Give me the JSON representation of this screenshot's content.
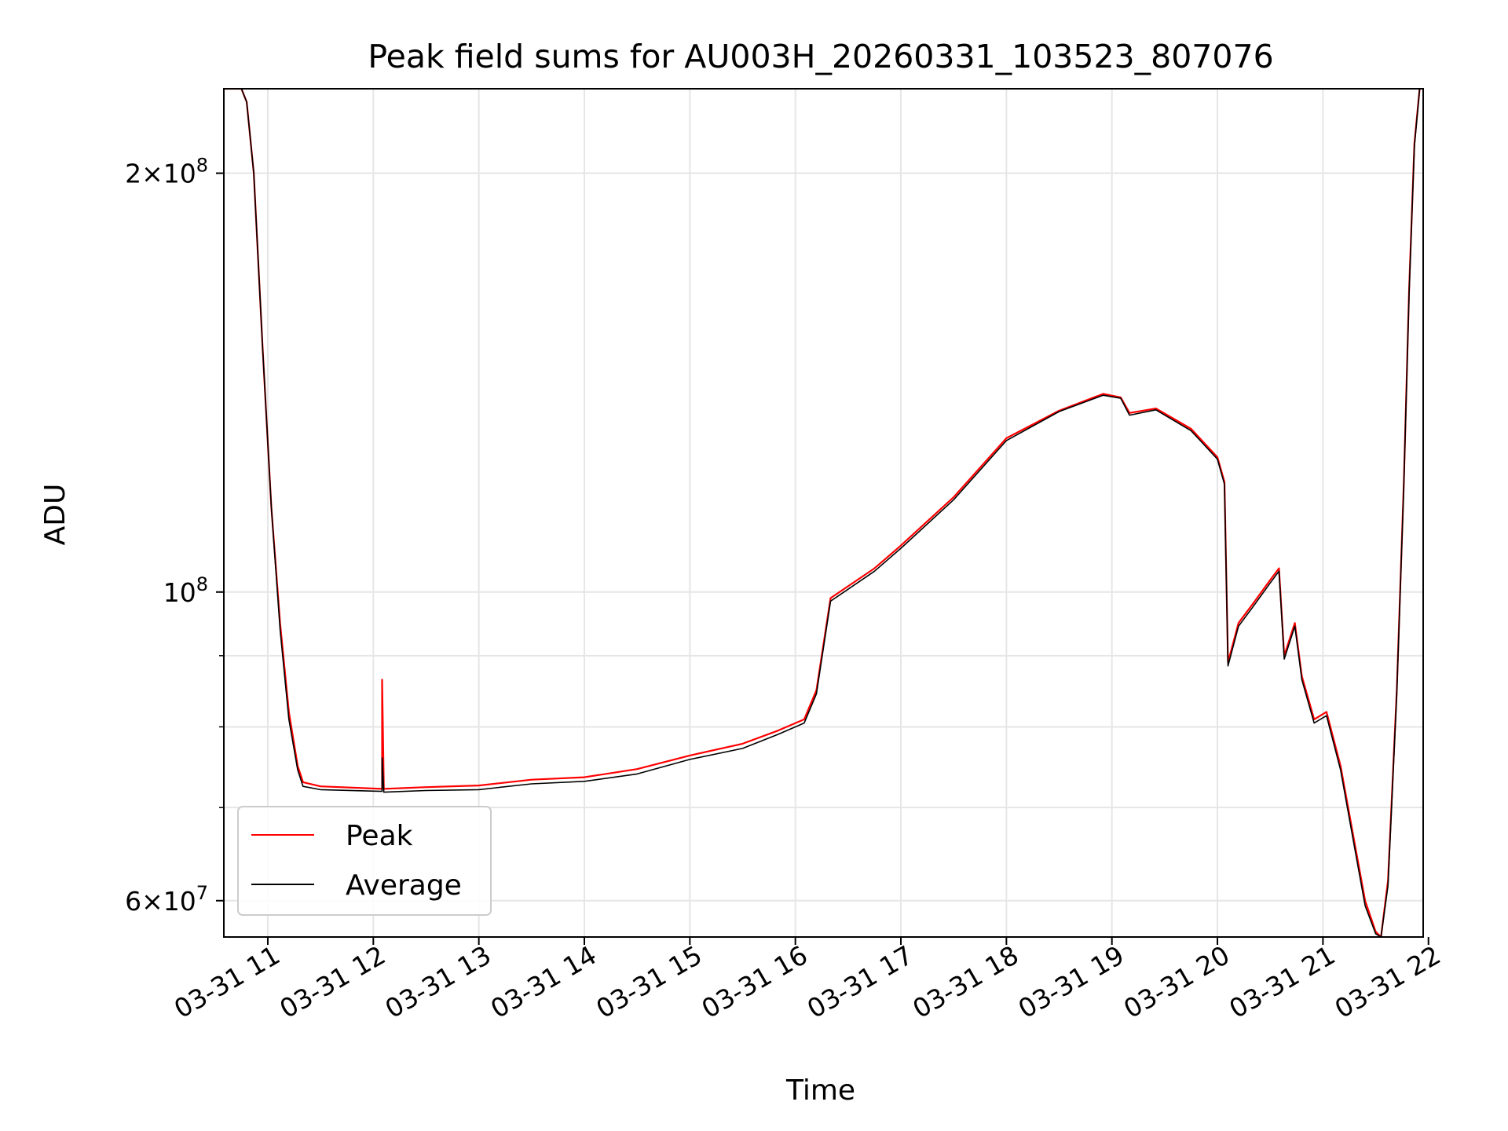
{
  "chart_data": {
    "type": "line",
    "title": "Peak field sums for AU003H_20260331_103523_807076",
    "xlabel": "Time",
    "ylabel": "ADU",
    "x_range": [
      "2026-03-31 10:35",
      "2026-03-31 21:57"
    ],
    "y_range": [
      56500000,
      230000000
    ],
    "y_scale": "log",
    "grid": true,
    "legend_position": "lower-left",
    "x_ticks": [
      "2026-03-31 11:00",
      "2026-03-31 12:00",
      "2026-03-31 13:00",
      "2026-03-31 14:00",
      "2026-03-31 15:00",
      "2026-03-31 16:00",
      "2026-03-31 17:00",
      "2026-03-31 18:00",
      "2026-03-31 19:00",
      "2026-03-31 20:00",
      "2026-03-31 21:00",
      "2026-03-31 22:00"
    ],
    "x_tick_labels": [
      "03-31 11",
      "03-31 12",
      "03-31 13",
      "03-31 14",
      "03-31 15",
      "03-31 16",
      "03-31 17",
      "03-31 18",
      "03-31 19",
      "03-31 20",
      "03-31 21",
      "03-31 22"
    ],
    "y_ticks_major": [
      {
        "value": 200000000,
        "mant": "2",
        "exp": "8"
      },
      {
        "value": 100000000,
        "mant": "",
        "exp": "8"
      },
      {
        "value": 60000000,
        "mant": "6",
        "exp": "7"
      }
    ],
    "y_ticks_minor": [
      70000000,
      80000000,
      90000000
    ],
    "series": [
      {
        "name": "Peak",
        "color": "#ff0000",
        "points": [
          [
            "2026-03-31 10:35",
            230000000
          ],
          [
            "2026-03-31 10:45",
            230000000
          ],
          [
            "2026-03-31 10:48",
            225000000
          ],
          [
            "2026-03-31 10:52",
            200000000
          ],
          [
            "2026-03-31 10:57",
            150000000
          ],
          [
            "2026-03-31 11:02",
            115000000
          ],
          [
            "2026-03-31 11:07",
            95000000
          ],
          [
            "2026-03-31 11:12",
            82000000
          ],
          [
            "2026-03-31 11:17",
            75000000
          ],
          [
            "2026-03-31 11:20",
            73000000
          ],
          [
            "2026-03-31 11:30",
            72500000
          ],
          [
            "2026-03-31 12:05",
            72200000
          ],
          [
            "2026-03-31 12:05",
            86500000
          ],
          [
            "2026-03-31 12:06",
            72200000
          ],
          [
            "2026-03-31 12:30",
            72400000
          ],
          [
            "2026-03-31 13:00",
            72600000
          ],
          [
            "2026-03-31 13:30",
            73300000
          ],
          [
            "2026-03-31 14:00",
            73600000
          ],
          [
            "2026-03-31 14:30",
            74600000
          ],
          [
            "2026-03-31 15:00",
            76300000
          ],
          [
            "2026-03-31 15:30",
            77800000
          ],
          [
            "2026-03-31 15:50",
            79500000
          ],
          [
            "2026-03-31 16:05",
            81000000
          ],
          [
            "2026-03-31 16:12",
            85000000
          ],
          [
            "2026-03-31 16:20",
            99000000
          ],
          [
            "2026-03-31 16:45",
            104000000
          ],
          [
            "2026-03-31 17:00",
            108000000
          ],
          [
            "2026-03-31 17:30",
            117000000
          ],
          [
            "2026-03-31 18:00",
            129000000
          ],
          [
            "2026-03-31 18:30",
            135000000
          ],
          [
            "2026-03-31 18:55",
            138800000
          ],
          [
            "2026-03-31 19:05",
            138000000
          ],
          [
            "2026-03-31 19:10",
            134500000
          ],
          [
            "2026-03-31 19:25",
            135500000
          ],
          [
            "2026-03-31 19:45",
            131000000
          ],
          [
            "2026-03-31 20:00",
            125000000
          ],
          [
            "2026-03-31 20:04",
            120000000
          ],
          [
            "2026-03-31 20:06",
            89000000
          ],
          [
            "2026-03-31 20:12",
            95000000
          ],
          [
            "2026-03-31 20:20",
            98000000
          ],
          [
            "2026-03-31 20:30",
            102000000
          ],
          [
            "2026-03-31 20:35",
            104000000
          ],
          [
            "2026-03-31 20:38",
            90000000
          ],
          [
            "2026-03-31 20:44",
            95000000
          ],
          [
            "2026-03-31 20:48",
            87000000
          ],
          [
            "2026-03-31 20:55",
            81000000
          ],
          [
            "2026-03-31 21:02",
            82000000
          ],
          [
            "2026-03-31 21:10",
            75000000
          ],
          [
            "2026-03-31 21:18",
            66000000
          ],
          [
            "2026-03-31 21:24",
            60000000
          ],
          [
            "2026-03-31 21:30",
            57000000
          ],
          [
            "2026-03-31 21:33",
            56500000
          ],
          [
            "2026-03-31 21:37",
            62000000
          ],
          [
            "2026-03-31 21:42",
            85000000
          ],
          [
            "2026-03-31 21:46",
            120000000
          ],
          [
            "2026-03-31 21:49",
            165000000
          ],
          [
            "2026-03-31 21:52",
            210000000
          ],
          [
            "2026-03-31 21:55",
            230000000
          ]
        ]
      },
      {
        "name": "Average",
        "color": "#000000",
        "points": [
          [
            "2026-03-31 10:35",
            230000000
          ],
          [
            "2026-03-31 10:45",
            230000000
          ],
          [
            "2026-03-31 10:48",
            225000000
          ],
          [
            "2026-03-31 10:52",
            200000000
          ],
          [
            "2026-03-31 10:57",
            150000000
          ],
          [
            "2026-03-31 11:02",
            115000000
          ],
          [
            "2026-03-31 11:07",
            94000000
          ],
          [
            "2026-03-31 11:12",
            81000000
          ],
          [
            "2026-03-31 11:17",
            74500000
          ],
          [
            "2026-03-31 11:20",
            72500000
          ],
          [
            "2026-03-31 11:30",
            72100000
          ],
          [
            "2026-03-31 12:05",
            71900000
          ],
          [
            "2026-03-31 12:05",
            76000000
          ],
          [
            "2026-03-31 12:06",
            71800000
          ],
          [
            "2026-03-31 12:30",
            72000000
          ],
          [
            "2026-03-31 13:00",
            72100000
          ],
          [
            "2026-03-31 13:30",
            72800000
          ],
          [
            "2026-03-31 14:00",
            73100000
          ],
          [
            "2026-03-31 14:30",
            74000000
          ],
          [
            "2026-03-31 15:00",
            75800000
          ],
          [
            "2026-03-31 15:30",
            77200000
          ],
          [
            "2026-03-31 15:50",
            79000000
          ],
          [
            "2026-03-31 16:05",
            80500000
          ],
          [
            "2026-03-31 16:12",
            84500000
          ],
          [
            "2026-03-31 16:20",
            98500000
          ],
          [
            "2026-03-31 16:45",
            103500000
          ],
          [
            "2026-03-31 17:00",
            107500000
          ],
          [
            "2026-03-31 17:30",
            116500000
          ],
          [
            "2026-03-31 18:00",
            128500000
          ],
          [
            "2026-03-31 18:30",
            134800000
          ],
          [
            "2026-03-31 18:55",
            138500000
          ],
          [
            "2026-03-31 19:05",
            137800000
          ],
          [
            "2026-03-31 19:10",
            134000000
          ],
          [
            "2026-03-31 19:25",
            135200000
          ],
          [
            "2026-03-31 19:45",
            130600000
          ],
          [
            "2026-03-31 20:00",
            124600000
          ],
          [
            "2026-03-31 20:04",
            119500000
          ],
          [
            "2026-03-31 20:06",
            88500000
          ],
          [
            "2026-03-31 20:12",
            94500000
          ],
          [
            "2026-03-31 20:20",
            97500000
          ],
          [
            "2026-03-31 20:30",
            101500000
          ],
          [
            "2026-03-31 20:35",
            103500000
          ],
          [
            "2026-03-31 20:38",
            89500000
          ],
          [
            "2026-03-31 20:44",
            94500000
          ],
          [
            "2026-03-31 20:48",
            86500000
          ],
          [
            "2026-03-31 20:55",
            80500000
          ],
          [
            "2026-03-31 21:02",
            81500000
          ],
          [
            "2026-03-31 21:10",
            74500000
          ],
          [
            "2026-03-31 21:18",
            65500000
          ],
          [
            "2026-03-31 21:24",
            59500000
          ],
          [
            "2026-03-31 21:30",
            56800000
          ],
          [
            "2026-03-31 21:33",
            56500000
          ],
          [
            "2026-03-31 21:37",
            61500000
          ],
          [
            "2026-03-31 21:42",
            84500000
          ],
          [
            "2026-03-31 21:46",
            119500000
          ],
          [
            "2026-03-31 21:49",
            164000000
          ],
          [
            "2026-03-31 21:52",
            209000000
          ],
          [
            "2026-03-31 21:55",
            230000000
          ]
        ]
      }
    ]
  }
}
